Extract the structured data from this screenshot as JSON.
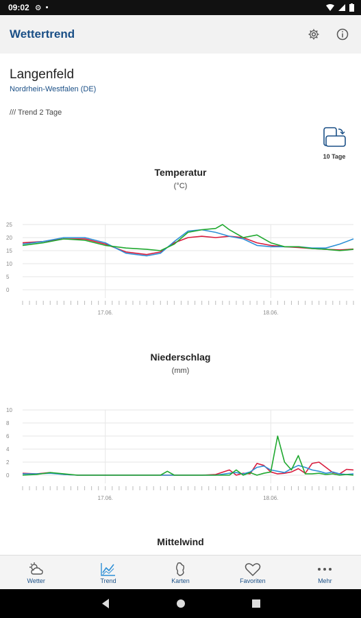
{
  "status": {
    "time": "09:02"
  },
  "appbar": {
    "title": "Wettertrend"
  },
  "location": {
    "city": "Langenfeld",
    "region": "Nordrhein-Westfalen (DE)"
  },
  "trend": {
    "label": "/// Trend 2 Tage",
    "days_toggle": "10 Tage"
  },
  "colors": {
    "red": "#d81b3c",
    "blue": "#2d8fd6",
    "green": "#1fa82f",
    "accent": "#1a4f86"
  },
  "charts": [
    {
      "title": "Temperatur",
      "unit": "(°C)"
    },
    {
      "title": "Niederschlag",
      "unit": "(mm)"
    },
    {
      "title": "Mittelwind"
    }
  ],
  "chart_data": [
    {
      "type": "line",
      "title": "Temperatur",
      "ylabel": "(°C)",
      "yticks": [
        0,
        5,
        10,
        15,
        20,
        25
      ],
      "ylim": [
        0,
        25
      ],
      "xlim": [
        0,
        48
      ],
      "xticks": [
        {
          "x": 12,
          "label": "17.06."
        },
        {
          "x": 36,
          "label": "18.06."
        }
      ],
      "grid": true,
      "series": [
        {
          "color": "red",
          "x": [
            0,
            3,
            6,
            9,
            12,
            15,
            18,
            20,
            22,
            24,
            26,
            28,
            30,
            32,
            34,
            36,
            38,
            40,
            42,
            44,
            46,
            48
          ],
          "y": [
            18,
            18.5,
            19.5,
            19.5,
            17.5,
            14.5,
            13.5,
            14.5,
            18,
            20,
            20.5,
            20,
            20.5,
            20,
            18,
            17,
            16.5,
            16.2,
            15.8,
            15.5,
            15.3,
            15.6
          ]
        },
        {
          "color": "blue",
          "x": [
            0,
            3,
            6,
            9,
            12,
            15,
            18,
            20,
            22,
            24,
            26,
            28,
            30,
            32,
            34,
            36,
            38,
            40,
            42,
            44,
            46,
            48
          ],
          "y": [
            17.5,
            18.5,
            20,
            20,
            18,
            14,
            13,
            14,
            18.5,
            22.5,
            23,
            22,
            20.5,
            19.5,
            17,
            16.5,
            16.5,
            16.5,
            16,
            16,
            17.5,
            19.5
          ]
        },
        {
          "color": "green",
          "x": [
            0,
            3,
            6,
            9,
            12,
            15,
            18,
            20,
            22,
            24,
            26,
            28,
            29,
            30,
            32,
            34,
            36,
            38,
            40,
            42,
            44,
            46,
            48
          ],
          "y": [
            17,
            18,
            19.5,
            19,
            17,
            16,
            15.5,
            15,
            17.5,
            22,
            23,
            23.5,
            25,
            23,
            20,
            21,
            18,
            16.5,
            16.5,
            15.8,
            15.5,
            15,
            15.5
          ]
        }
      ]
    },
    {
      "type": "line",
      "title": "Niederschlag",
      "ylabel": "(mm)",
      "yticks": [
        0,
        2,
        4,
        6,
        8,
        10
      ],
      "ylim": [
        0,
        10
      ],
      "xlim": [
        0,
        48
      ],
      "xticks": [
        {
          "x": 12,
          "label": "17.06."
        },
        {
          "x": 36,
          "label": "18.06."
        }
      ],
      "grid": true,
      "series": [
        {
          "color": "red",
          "x": [
            0,
            2,
            4,
            6,
            8,
            10,
            12,
            16,
            20,
            24,
            26,
            28,
            30,
            31,
            32,
            33,
            34,
            35,
            36,
            37,
            38,
            39,
            40,
            41,
            42,
            43,
            44,
            45,
            46,
            47,
            48
          ],
          "y": [
            0.3,
            0.2,
            0.4,
            0.1,
            0,
            0,
            0,
            0,
            0,
            0,
            0,
            0.1,
            0.8,
            0,
            0.3,
            0.2,
            1.8,
            1.5,
            0.5,
            0.2,
            0.3,
            0.5,
            1.0,
            0.3,
            1.8,
            2.0,
            1.2,
            0.4,
            0.2,
            0.9,
            0.8
          ]
        },
        {
          "color": "blue",
          "x": [
            0,
            2,
            4,
            6,
            8,
            12,
            16,
            20,
            24,
            28,
            30,
            31,
            32,
            33,
            34,
            35,
            36,
            37,
            38,
            39,
            40,
            41,
            42,
            43,
            44,
            45,
            46,
            47,
            48
          ],
          "y": [
            0.2,
            0.2,
            0.3,
            0.1,
            0,
            0,
            0,
            0,
            0,
            0,
            0.3,
            0.4,
            0.2,
            0.5,
            1.2,
            1.4,
            0.8,
            0.6,
            0.4,
            1.0,
            1.5,
            1.2,
            0.8,
            0.6,
            0.3,
            0.5,
            0.2,
            0.1,
            0.2
          ]
        },
        {
          "color": "green",
          "x": [
            0,
            2,
            4,
            6,
            8,
            12,
            16,
            20,
            21,
            22,
            24,
            28,
            30,
            31,
            32,
            33,
            34,
            35,
            36,
            37,
            38,
            39,
            40,
            41,
            42,
            43,
            44,
            45,
            46,
            47,
            48
          ],
          "y": [
            0,
            0.1,
            0.4,
            0.2,
            0,
            0,
            0,
            0,
            0.6,
            0,
            0,
            0,
            0,
            0.8,
            0,
            0.4,
            0,
            0.3,
            0.5,
            6.0,
            2.0,
            0.8,
            3.0,
            0.2,
            0.2,
            0.3,
            0.1,
            0.2,
            0,
            0.1,
            0
          ]
        }
      ]
    }
  ],
  "nav": [
    {
      "label": "Wetter",
      "icon": "weather-icon"
    },
    {
      "label": "Trend",
      "icon": "trend-icon"
    },
    {
      "label": "Karten",
      "icon": "map-icon"
    },
    {
      "label": "Favoriten",
      "icon": "heart-icon"
    },
    {
      "label": "Mehr",
      "icon": "more-icon"
    }
  ]
}
